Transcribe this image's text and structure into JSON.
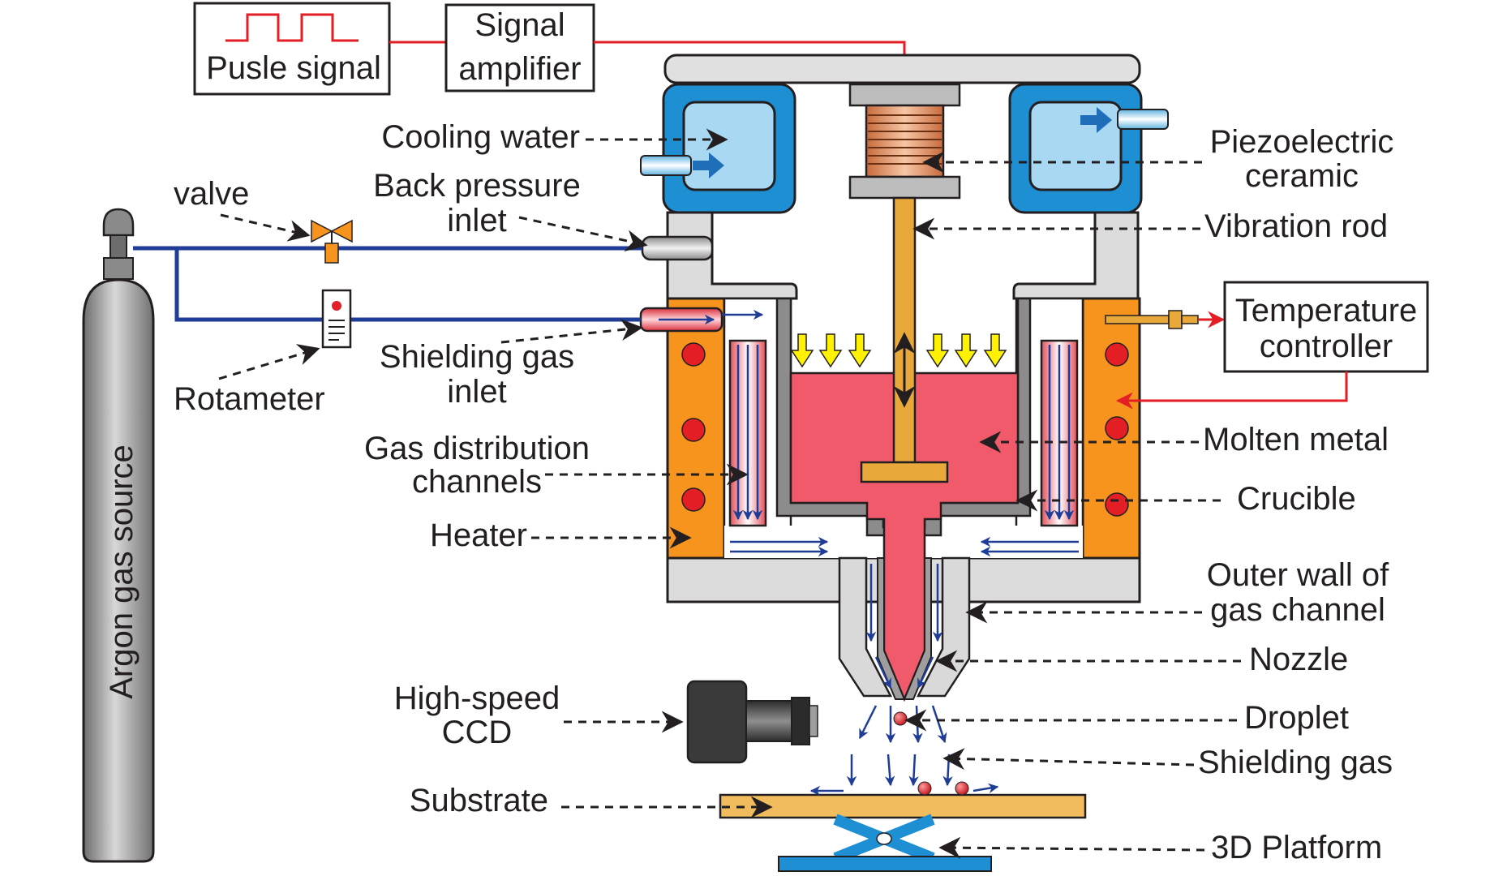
{
  "labels": {
    "pulse_signal": "Pusle signal",
    "signal_amplifier_1": "Signal",
    "signal_amplifier_2": "amplifier",
    "cooling_water": "Cooling water",
    "piezo_1": "Piezoelectric",
    "piezo_2": "ceramic",
    "valve": "valve",
    "back_pressure_1": "Back pressure",
    "back_pressure_2": "inlet",
    "vibration_rod": "Vibration rod",
    "temperature_1": "Temperature",
    "temperature_2": "controller",
    "shielding_inlet_1": "Shielding gas",
    "shielding_inlet_2": "inlet",
    "rotameter": "Rotameter",
    "molten_metal": "Molten metal",
    "gas_dist_1": "Gas distribution",
    "gas_dist_2": "channels",
    "crucible": "Crucible",
    "heater": "Heater",
    "outer_wall_1": "Outer wall of",
    "outer_wall_2": "gas channel",
    "nozzle": "Nozzle",
    "ccd_1": "High-speed",
    "ccd_2": "CCD",
    "droplet": "Droplet",
    "shielding_gas": "Shielding gas",
    "substrate": "Substrate",
    "platform": "3D Platform",
    "argon_source": "Argon gas source"
  },
  "colors": {
    "signal": "#e31e24",
    "gas_pipe": "#1f3c96",
    "cooling_outer": "#1e8fd2",
    "cooling_inner": "#a9d8f2",
    "heater": "#f7941d",
    "molten_metal": "#f15a6a",
    "rod": "#e8a93a",
    "wall": "#d9d9d9",
    "substrate": "#f0bc5e",
    "platform": "#1e8fd2",
    "cylinder": "#9e9e9e",
    "arrow_yellow": "#fff200"
  }
}
